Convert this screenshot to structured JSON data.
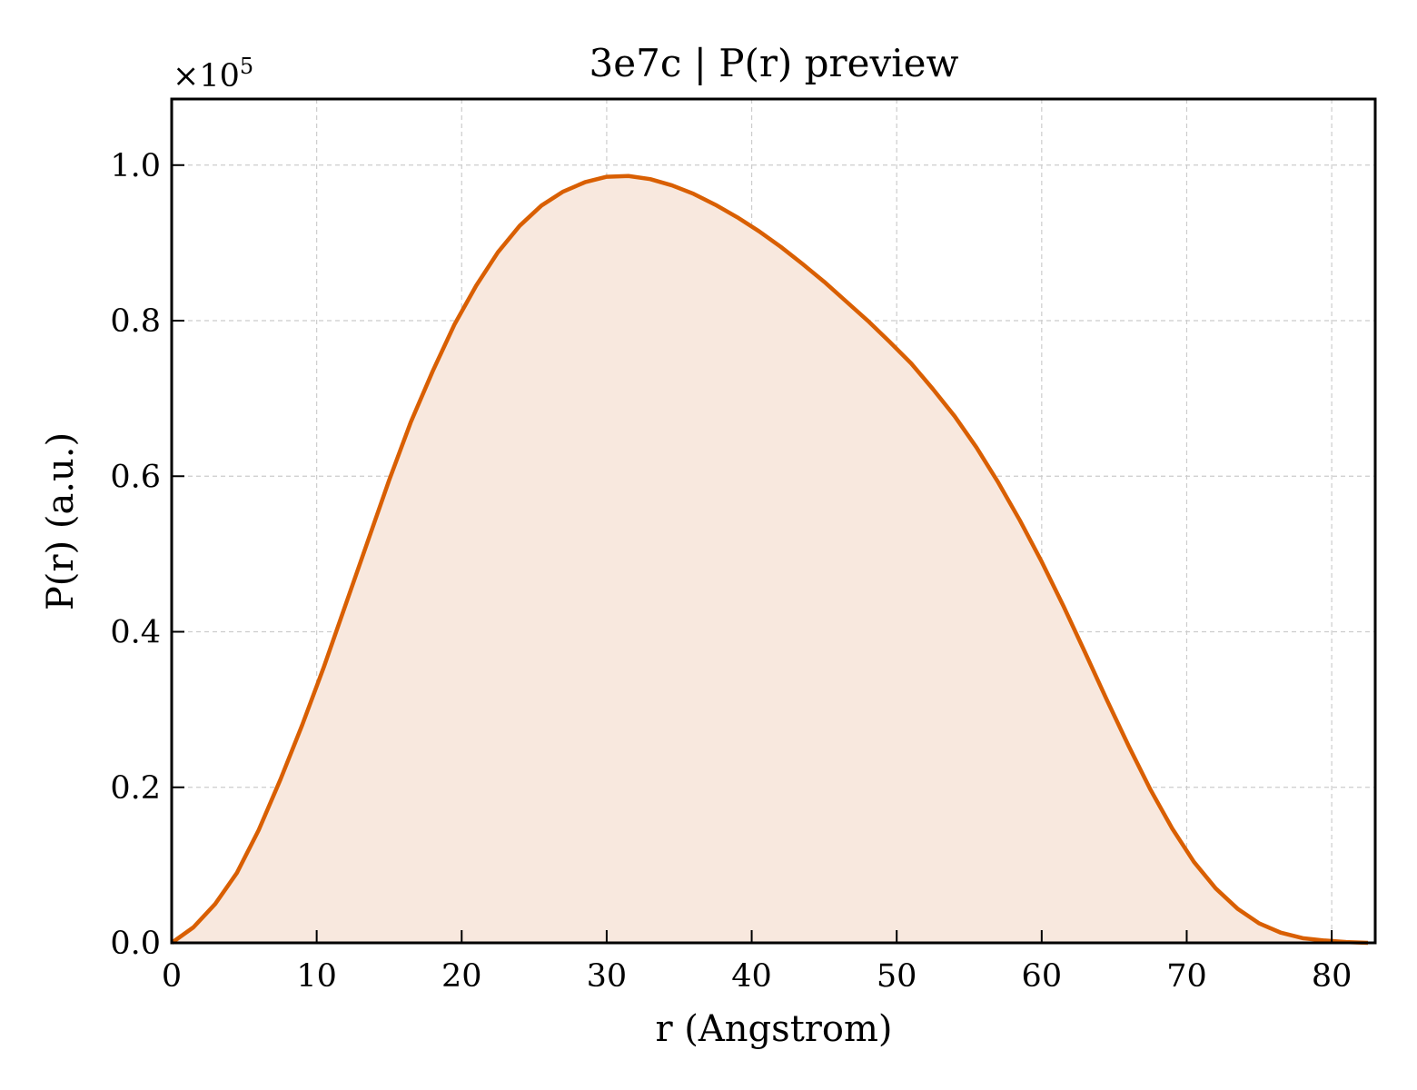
{
  "chart_data": {
    "type": "area",
    "title": "3e7c | P(r) preview",
    "xlabel": "r (Angstrom)",
    "ylabel": "P(r) (a.u.)",
    "y_multiplier_prefix": "×10",
    "y_multiplier_exponent": "5",
    "xlim": [
      0,
      83
    ],
    "ylim": [
      0,
      1.085
    ],
    "x_ticks": [
      0,
      10,
      20,
      30,
      40,
      50,
      60,
      70,
      80
    ],
    "x_tick_labels": [
      "0",
      "10",
      "20",
      "30",
      "40",
      "50",
      "60",
      "70",
      "80"
    ],
    "y_ticks": [
      0,
      0.2,
      0.4,
      0.6,
      0.8,
      1.0
    ],
    "y_tick_labels": [
      "0.0",
      "0.2",
      "0.4",
      "0.6",
      "0.8",
      "1.0"
    ],
    "grid": true,
    "line_color": "#d95f02",
    "fill_color": "#f8e8de",
    "series": [
      {
        "x": [
          0,
          1.5,
          3,
          4.5,
          6,
          7.5,
          9,
          10.5,
          12,
          13.5,
          15,
          16.5,
          18,
          19.5,
          21,
          22.5,
          24,
          25.5,
          27,
          28.5,
          30,
          31.5,
          33,
          34.5,
          36,
          37.5,
          39,
          40.5,
          42,
          43.5,
          45,
          46.5,
          48,
          49.5,
          51,
          52.5,
          54,
          55.5,
          57,
          58.5,
          60,
          61.5,
          63,
          64.5,
          66,
          67.5,
          69,
          70.5,
          72,
          73.5,
          75,
          76.5,
          78,
          79.5,
          81,
          82.5
        ],
        "y": [
          0,
          0.02,
          0.05,
          0.09,
          0.145,
          0.21,
          0.28,
          0.355,
          0.435,
          0.515,
          0.595,
          0.67,
          0.735,
          0.795,
          0.845,
          0.888,
          0.922,
          0.948,
          0.966,
          0.978,
          0.985,
          0.986,
          0.982,
          0.974,
          0.963,
          0.949,
          0.933,
          0.915,
          0.895,
          0.873,
          0.85,
          0.825,
          0.8,
          0.773,
          0.745,
          0.712,
          0.677,
          0.637,
          0.592,
          0.543,
          0.49,
          0.433,
          0.373,
          0.312,
          0.253,
          0.197,
          0.147,
          0.104,
          0.07,
          0.044,
          0.025,
          0.013,
          0.006,
          0.003,
          0.001,
          0
        ]
      }
    ]
  }
}
